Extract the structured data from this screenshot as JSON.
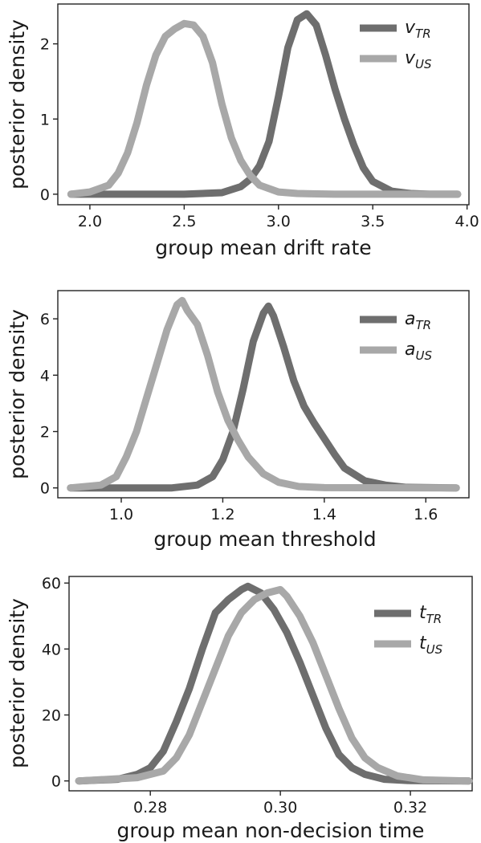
{
  "colors": {
    "tr": "#6e6e6e",
    "us": "#a8a8a8"
  },
  "chart_data": [
    {
      "type": "line",
      "xlabel": "group mean drift rate",
      "ylabel": "posterior density",
      "xlim": [
        1.83,
        4.01
      ],
      "ylim": [
        -0.14,
        2.53
      ],
      "xticks": [
        2.0,
        2.5,
        3.0,
        3.5,
        4.0
      ],
      "xtick_labels": [
        "2.0",
        "2.5",
        "3.0",
        "3.5",
        "4.0"
      ],
      "yticks": [
        0,
        1,
        2
      ],
      "ytick_labels": [
        "0",
        "1",
        "2"
      ],
      "grid": false,
      "legend_position": "top-right",
      "series": [
        {
          "key": "tr",
          "name": "v",
          "name_sub": "TR",
          "x": [
            1.9,
            2.5,
            2.7,
            2.8,
            2.85,
            2.9,
            2.95,
            3.0,
            3.05,
            3.1,
            3.15,
            3.2,
            3.25,
            3.3,
            3.35,
            3.4,
            3.45,
            3.5,
            3.6,
            3.7,
            3.8,
            3.95
          ],
          "y": [
            0,
            0,
            0.02,
            0.1,
            0.2,
            0.38,
            0.7,
            1.3,
            1.95,
            2.32,
            2.4,
            2.25,
            1.85,
            1.4,
            1.0,
            0.65,
            0.35,
            0.17,
            0.04,
            0.01,
            0,
            0
          ]
        },
        {
          "key": "us",
          "name": "v",
          "name_sub": "US",
          "x": [
            1.9,
            2.0,
            2.1,
            2.15,
            2.2,
            2.25,
            2.3,
            2.35,
            2.4,
            2.45,
            2.5,
            2.55,
            2.6,
            2.65,
            2.7,
            2.75,
            2.8,
            2.85,
            2.9,
            3.0,
            3.1,
            3.3,
            3.95
          ],
          "y": [
            0,
            0.03,
            0.12,
            0.28,
            0.55,
            0.95,
            1.45,
            1.85,
            2.1,
            2.2,
            2.27,
            2.25,
            2.1,
            1.75,
            1.2,
            0.75,
            0.45,
            0.25,
            0.12,
            0.03,
            0.01,
            0,
            0
          ]
        }
      ]
    },
    {
      "type": "line",
      "xlabel": "group mean threshold",
      "ylabel": "posterior density",
      "xlim": [
        0.875,
        1.685
      ],
      "ylim": [
        -0.35,
        7.0
      ],
      "xticks": [
        1.0,
        1.2,
        1.4,
        1.6
      ],
      "xtick_labels": [
        "1.0",
        "1.2",
        "1.4",
        "1.6"
      ],
      "yticks": [
        0,
        2,
        4,
        6
      ],
      "ytick_labels": [
        "0",
        "2",
        "4",
        "6"
      ],
      "grid": false,
      "legend_position": "top-right",
      "series": [
        {
          "key": "tr",
          "name": "a",
          "name_sub": "TR",
          "x": [
            0.9,
            1.1,
            1.15,
            1.18,
            1.2,
            1.22,
            1.24,
            1.26,
            1.28,
            1.29,
            1.3,
            1.32,
            1.34,
            1.36,
            1.38,
            1.4,
            1.42,
            1.44,
            1.48,
            1.52,
            1.56,
            1.66
          ],
          "y": [
            0,
            0,
            0.1,
            0.4,
            1.0,
            2.0,
            3.5,
            5.2,
            6.2,
            6.45,
            6.1,
            5.0,
            3.8,
            2.9,
            2.3,
            1.75,
            1.2,
            0.7,
            0.25,
            0.1,
            0.02,
            0
          ]
        },
        {
          "key": "us",
          "name": "a",
          "name_sub": "US",
          "x": [
            0.9,
            0.96,
            0.99,
            1.01,
            1.03,
            1.05,
            1.07,
            1.09,
            1.11,
            1.12,
            1.13,
            1.15,
            1.17,
            1.19,
            1.21,
            1.23,
            1.25,
            1.28,
            1.31,
            1.35,
            1.4,
            1.66
          ],
          "y": [
            0,
            0.1,
            0.4,
            1.1,
            2.0,
            3.2,
            4.4,
            5.6,
            6.5,
            6.65,
            6.3,
            5.8,
            4.7,
            3.4,
            2.4,
            1.7,
            1.1,
            0.5,
            0.2,
            0.05,
            0.01,
            0
          ]
        }
      ]
    },
    {
      "type": "line",
      "xlabel": "group mean non-decision time",
      "ylabel": "posterior density",
      "xlim": [
        0.2675,
        0.3295
      ],
      "ylim": [
        -3,
        62
      ],
      "xticks": [
        0.28,
        0.3,
        0.32
      ],
      "xtick_labels": [
        "0.28",
        "0.30",
        "0.32"
      ],
      "yticks": [
        0,
        20,
        40,
        60
      ],
      "ytick_labels": [
        "0",
        "20",
        "40",
        "60"
      ],
      "grid": false,
      "legend_position": "top-right",
      "series": [
        {
          "key": "tr",
          "name": "t",
          "name_sub": "TR",
          "x": [
            0.269,
            0.275,
            0.278,
            0.28,
            0.282,
            0.284,
            0.286,
            0.288,
            0.29,
            0.292,
            0.294,
            0.295,
            0.297,
            0.299,
            0.301,
            0.303,
            0.305,
            0.307,
            0.309,
            0.311,
            0.313,
            0.316,
            0.32,
            0.329
          ],
          "y": [
            0,
            0.5,
            2,
            4,
            9,
            18,
            28,
            40,
            51,
            55,
            58,
            59,
            57,
            52,
            45,
            36,
            26,
            16,
            8,
            4,
            2,
            0.5,
            0.1,
            0
          ]
        },
        {
          "key": "us",
          "name": "t",
          "name_sub": "US",
          "x": [
            0.269,
            0.278,
            0.282,
            0.284,
            0.286,
            0.288,
            0.29,
            0.292,
            0.294,
            0.296,
            0.298,
            0.3,
            0.301,
            0.303,
            0.305,
            0.307,
            0.309,
            0.311,
            0.313,
            0.315,
            0.318,
            0.322,
            0.329
          ],
          "y": [
            0,
            1,
            3,
            7,
            14,
            24,
            34,
            44,
            51,
            55,
            57,
            58,
            56,
            50,
            42,
            32,
            22,
            13,
            7,
            4,
            1.5,
            0.3,
            0
          ]
        }
      ]
    }
  ]
}
